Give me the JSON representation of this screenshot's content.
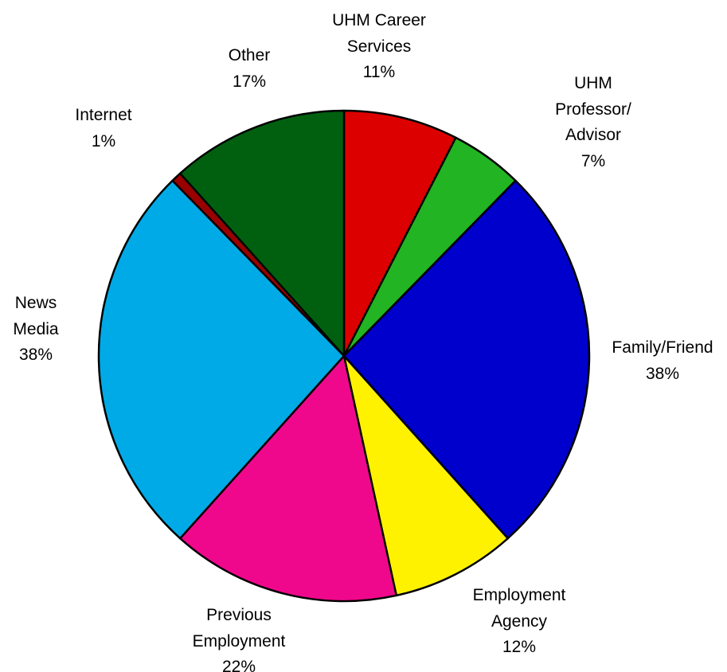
{
  "chart_data": {
    "type": "pie",
    "categories": [
      "UHM Career\nServices",
      "UHM\nProfessor/\nAdvisor",
      "Family/Friend",
      "Employment\nAgency",
      "Previous\nEmployment",
      "News\nMedia",
      "Internet",
      "Other"
    ],
    "values": [
      11,
      7,
      38,
      12,
      22,
      38,
      1,
      17
    ],
    "value_labels": [
      "11%",
      "7%",
      "38%",
      "12%",
      "22%",
      "38%",
      "1%",
      "17%"
    ],
    "colors": [
      "#dd0000",
      "#22b422",
      "#0000cc",
      "#fff200",
      "#f0088c",
      "#00aae6",
      "#990000",
      "#006010"
    ]
  }
}
